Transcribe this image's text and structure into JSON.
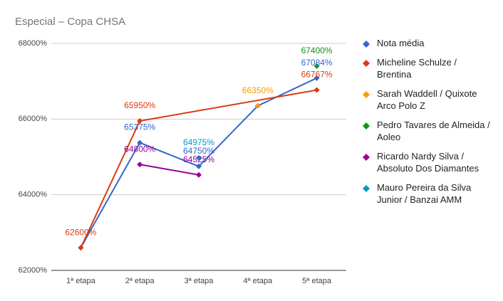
{
  "chart_data": {
    "type": "line",
    "title": "Especial – Copa CHSA",
    "categories": [
      "1ª etapa",
      "2ª etapa",
      "3ª etapa",
      "4ª etapa",
      "5ª etapa"
    ],
    "series": [
      {
        "name": "Nota média",
        "color": "#3366cc",
        "values": [
          62600,
          65375,
          64750,
          66350,
          67084
        ],
        "value_labels": [
          null,
          "65375%",
          "64750%",
          null,
          "67084%"
        ]
      },
      {
        "name": "Micheline Schulze / Brentina",
        "color": "#dc3912",
        "values": [
          62600,
          65950,
          null,
          null,
          66767
        ],
        "value_labels": [
          "62600%",
          "65950%",
          null,
          null,
          "66767%"
        ]
      },
      {
        "name": "Sarah Waddell / Quixote Arco Polo Z",
        "color": "#ff9900",
        "values": [
          null,
          null,
          null,
          66350,
          null
        ],
        "value_labels": [
          null,
          null,
          null,
          "66350%",
          null
        ]
      },
      {
        "name": "Pedro Tavares de Almeida / Aoleo",
        "color": "#109618",
        "values": [
          null,
          null,
          null,
          null,
          67400
        ],
        "value_labels": [
          null,
          null,
          null,
          null,
          "67400%"
        ]
      },
      {
        "name": "Ricardo Nardy Silva / Absoluto Dos Diamantes",
        "color": "#990099",
        "values": [
          null,
          64800,
          64525,
          null,
          null
        ],
        "value_labels": [
          null,
          "64800%",
          "64525%",
          null,
          null
        ]
      },
      {
        "name": "Mauro Pereira da Silva Junior / Banzai AMM",
        "color": "#0099c6",
        "values": [
          null,
          null,
          64975,
          null,
          null
        ],
        "value_labels": [
          null,
          null,
          "64975%",
          null,
          null
        ]
      }
    ],
    "ylim": [
      62000,
      68000
    ],
    "yticks": [
      {
        "value": 62000,
        "label": "62000%"
      },
      {
        "value": 64000,
        "label": "64000%"
      },
      {
        "value": 66000,
        "label": "66000%"
      },
      {
        "value": 68000,
        "label": "68000%"
      }
    ],
    "grid": true,
    "interpolate_nulls": true,
    "legend": "right"
  }
}
